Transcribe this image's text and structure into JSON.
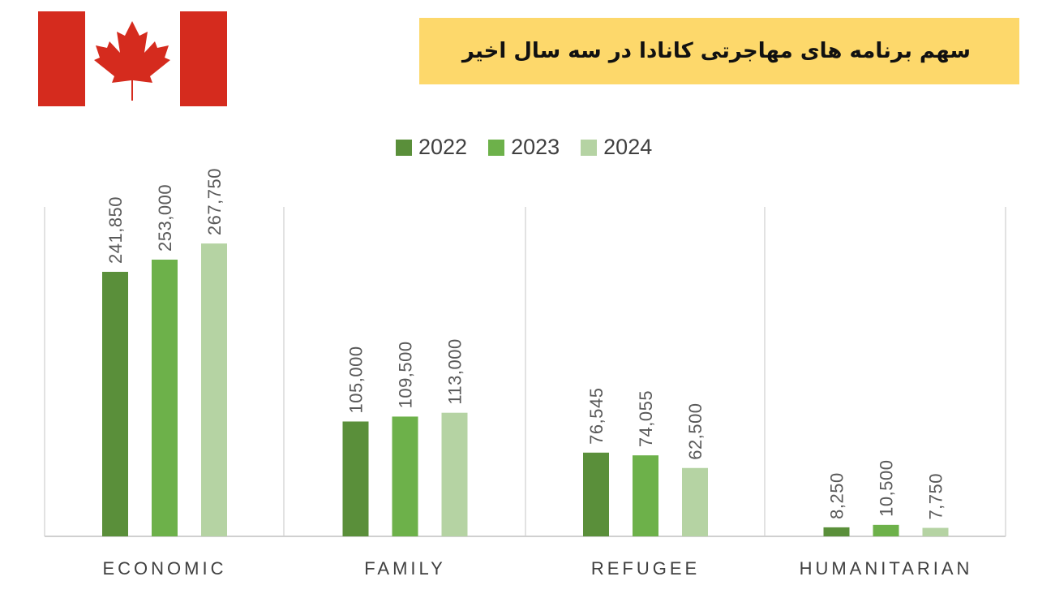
{
  "title": "سهم برنامه های مهاجرتی کانادا در سه سال اخیر",
  "flag": {
    "name": "canada-flag",
    "colors": {
      "red": "#d52b1e",
      "white": "#ffffff"
    }
  },
  "colors": {
    "title_background": "#fdd86b"
  },
  "chart_data": {
    "type": "bar",
    "categories": [
      "ECONOMIC",
      "FAMILY",
      "REFUGEE",
      "HUMANITARIAN"
    ],
    "series": [
      {
        "name": "2022",
        "color": "#5a8f3a",
        "values": [
          241850,
          105000,
          76545,
          8250
        ],
        "labels": [
          "241,850",
          "105,000",
          "76,545",
          "8,250"
        ]
      },
      {
        "name": "2023",
        "color": "#6db14a",
        "values": [
          253000,
          109500,
          74055,
          10500
        ],
        "labels": [
          "253,000",
          "109,500",
          "74,055",
          "10,500"
        ]
      },
      {
        "name": "2024",
        "color": "#b5d3a3",
        "values": [
          267750,
          113000,
          62500,
          7750
        ],
        "labels": [
          "267,750",
          "113,000",
          "62,500",
          "7,750"
        ]
      }
    ],
    "legend": "top",
    "grid": false,
    "ylim": [
      0,
      300000
    ]
  }
}
